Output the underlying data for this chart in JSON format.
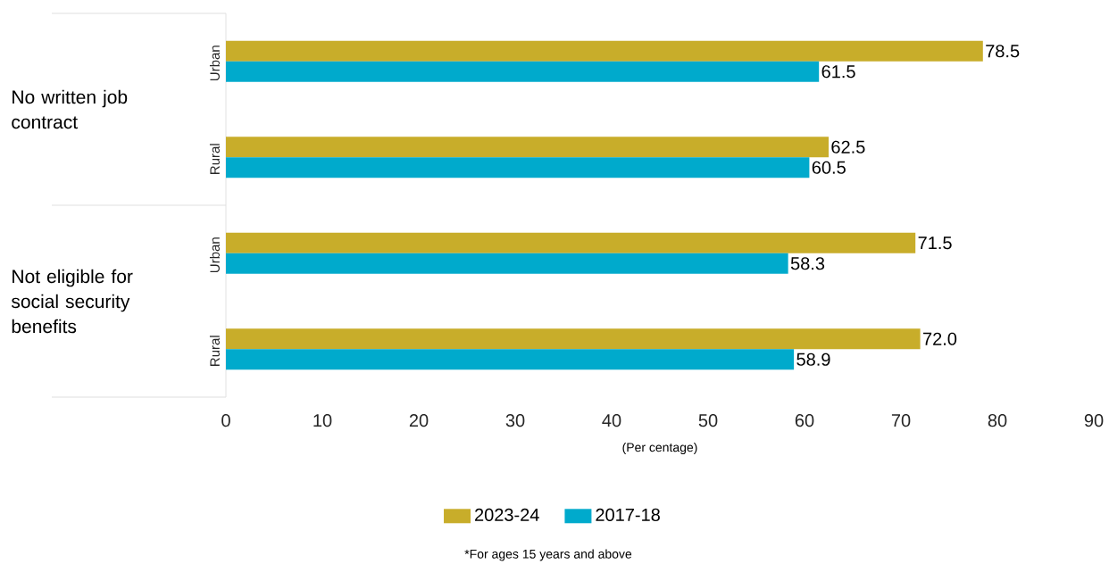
{
  "chart_data": {
    "type": "bar",
    "orientation": "horizontal",
    "xlabel": "(Per centage)",
    "categories": [
      "Urban",
      "Rural",
      "Urban",
      "Rural"
    ],
    "series": [
      {
        "name": "2023-24",
        "color": "#c8ad2a",
        "values": [
          78.5,
          62.5,
          71.5,
          72.0
        ],
        "value_labels": [
          "78.5",
          "62.5",
          "71.5",
          "72.0"
        ]
      },
      {
        "name": "2017-18",
        "color": "#00aacc",
        "values": [
          61.5,
          60.5,
          58.3,
          58.9
        ],
        "value_labels": [
          "61.5",
          "60.5",
          "58.3",
          "58.9"
        ]
      }
    ],
    "xlim": [
      0,
      90
    ],
    "xticks": [
      0,
      10,
      20,
      30,
      40,
      50,
      60,
      70,
      80,
      90
    ],
    "legend": "bottom",
    "grid": false,
    "annotations": [
      "No written job contract",
      "Not eligible for social security benefits",
      "*For ages 15 years and above"
    ]
  }
}
